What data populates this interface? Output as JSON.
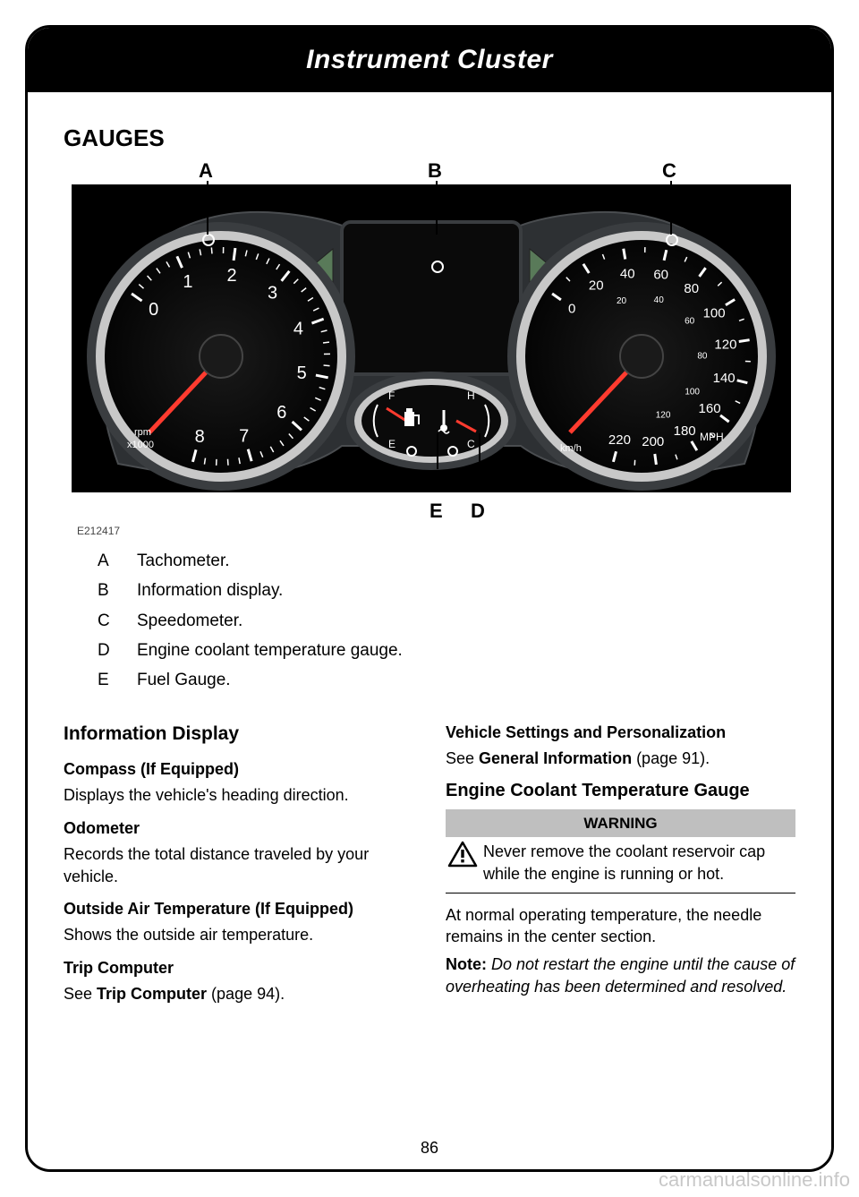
{
  "header": {
    "title": "Instrument Cluster"
  },
  "section": {
    "title": "GAUGES"
  },
  "figure": {
    "ref": "E212417",
    "labels": {
      "a": "A",
      "b": "B",
      "c": "C",
      "d": "D",
      "e": "E"
    },
    "tachometer": {
      "ticks": [
        "0",
        "1",
        "2",
        "3",
        "4",
        "5",
        "6",
        "7",
        "8"
      ],
      "unit_top": "rpm",
      "unit_bot": "x1000"
    },
    "speedometer": {
      "outer": [
        "0",
        "20",
        "40",
        "60",
        "80",
        "100",
        "120",
        "140",
        "160",
        "180",
        "200",
        "220"
      ],
      "inner": [
        "20",
        "40",
        "60",
        "80",
        "100",
        "120"
      ],
      "unit_outer": "MPH",
      "unit_inner": "km/h"
    },
    "fuel": {
      "full": "F",
      "empty": "E"
    },
    "temp": {
      "hot": "H",
      "cold": "C"
    }
  },
  "legend": {
    "items": [
      {
        "k": "A",
        "v": "Tachometer."
      },
      {
        "k": "B",
        "v": "Information display."
      },
      {
        "k": "C",
        "v": "Speedometer."
      },
      {
        "k": "D",
        "v": "Engine coolant temperature gauge."
      },
      {
        "k": "E",
        "v": "Fuel Gauge."
      }
    ]
  },
  "left_col": {
    "h1": "Information Display",
    "compass_h": "Compass (If Equipped)",
    "compass_p": "Displays the vehicle's heading direction.",
    "odo_h": "Odometer",
    "odo_p": "Records the total distance traveled by your vehicle.",
    "oat_h": "Outside Air Temperature (If Equipped)",
    "oat_p": "Shows the outside air temperature.",
    "trip_h": "Trip Computer",
    "trip_p_pre": "See ",
    "trip_p_bold": "Trip Computer",
    "trip_p_post": " (page 94)."
  },
  "right_col": {
    "vsp_h": "Vehicle Settings and Personalization",
    "vsp_p_pre": "See ",
    "vsp_p_bold": "General Information",
    "vsp_p_post": " (page 91).",
    "ect_h": "Engine Coolant Temperature Gauge",
    "warn_head": "WARNING",
    "warn_body": "Never remove the coolant reservoir cap while the engine is running or hot.",
    "ect_p": "At normal operating temperature, the needle remains in the center section.",
    "note_label": "Note:",
    "note_body": " Do not restart the engine until the cause of overheating has been determined and resolved."
  },
  "page_number": "86",
  "watermark": "carmanualsonline.info",
  "colors": {
    "black": "#000000",
    "white": "#ffffff",
    "mid_gray": "#555555",
    "dark_gray": "#2a2a2a",
    "panel_gray": "#3a3d40",
    "dial_black": "#0a0a0a",
    "warn_gray": "#bfbfbf"
  }
}
